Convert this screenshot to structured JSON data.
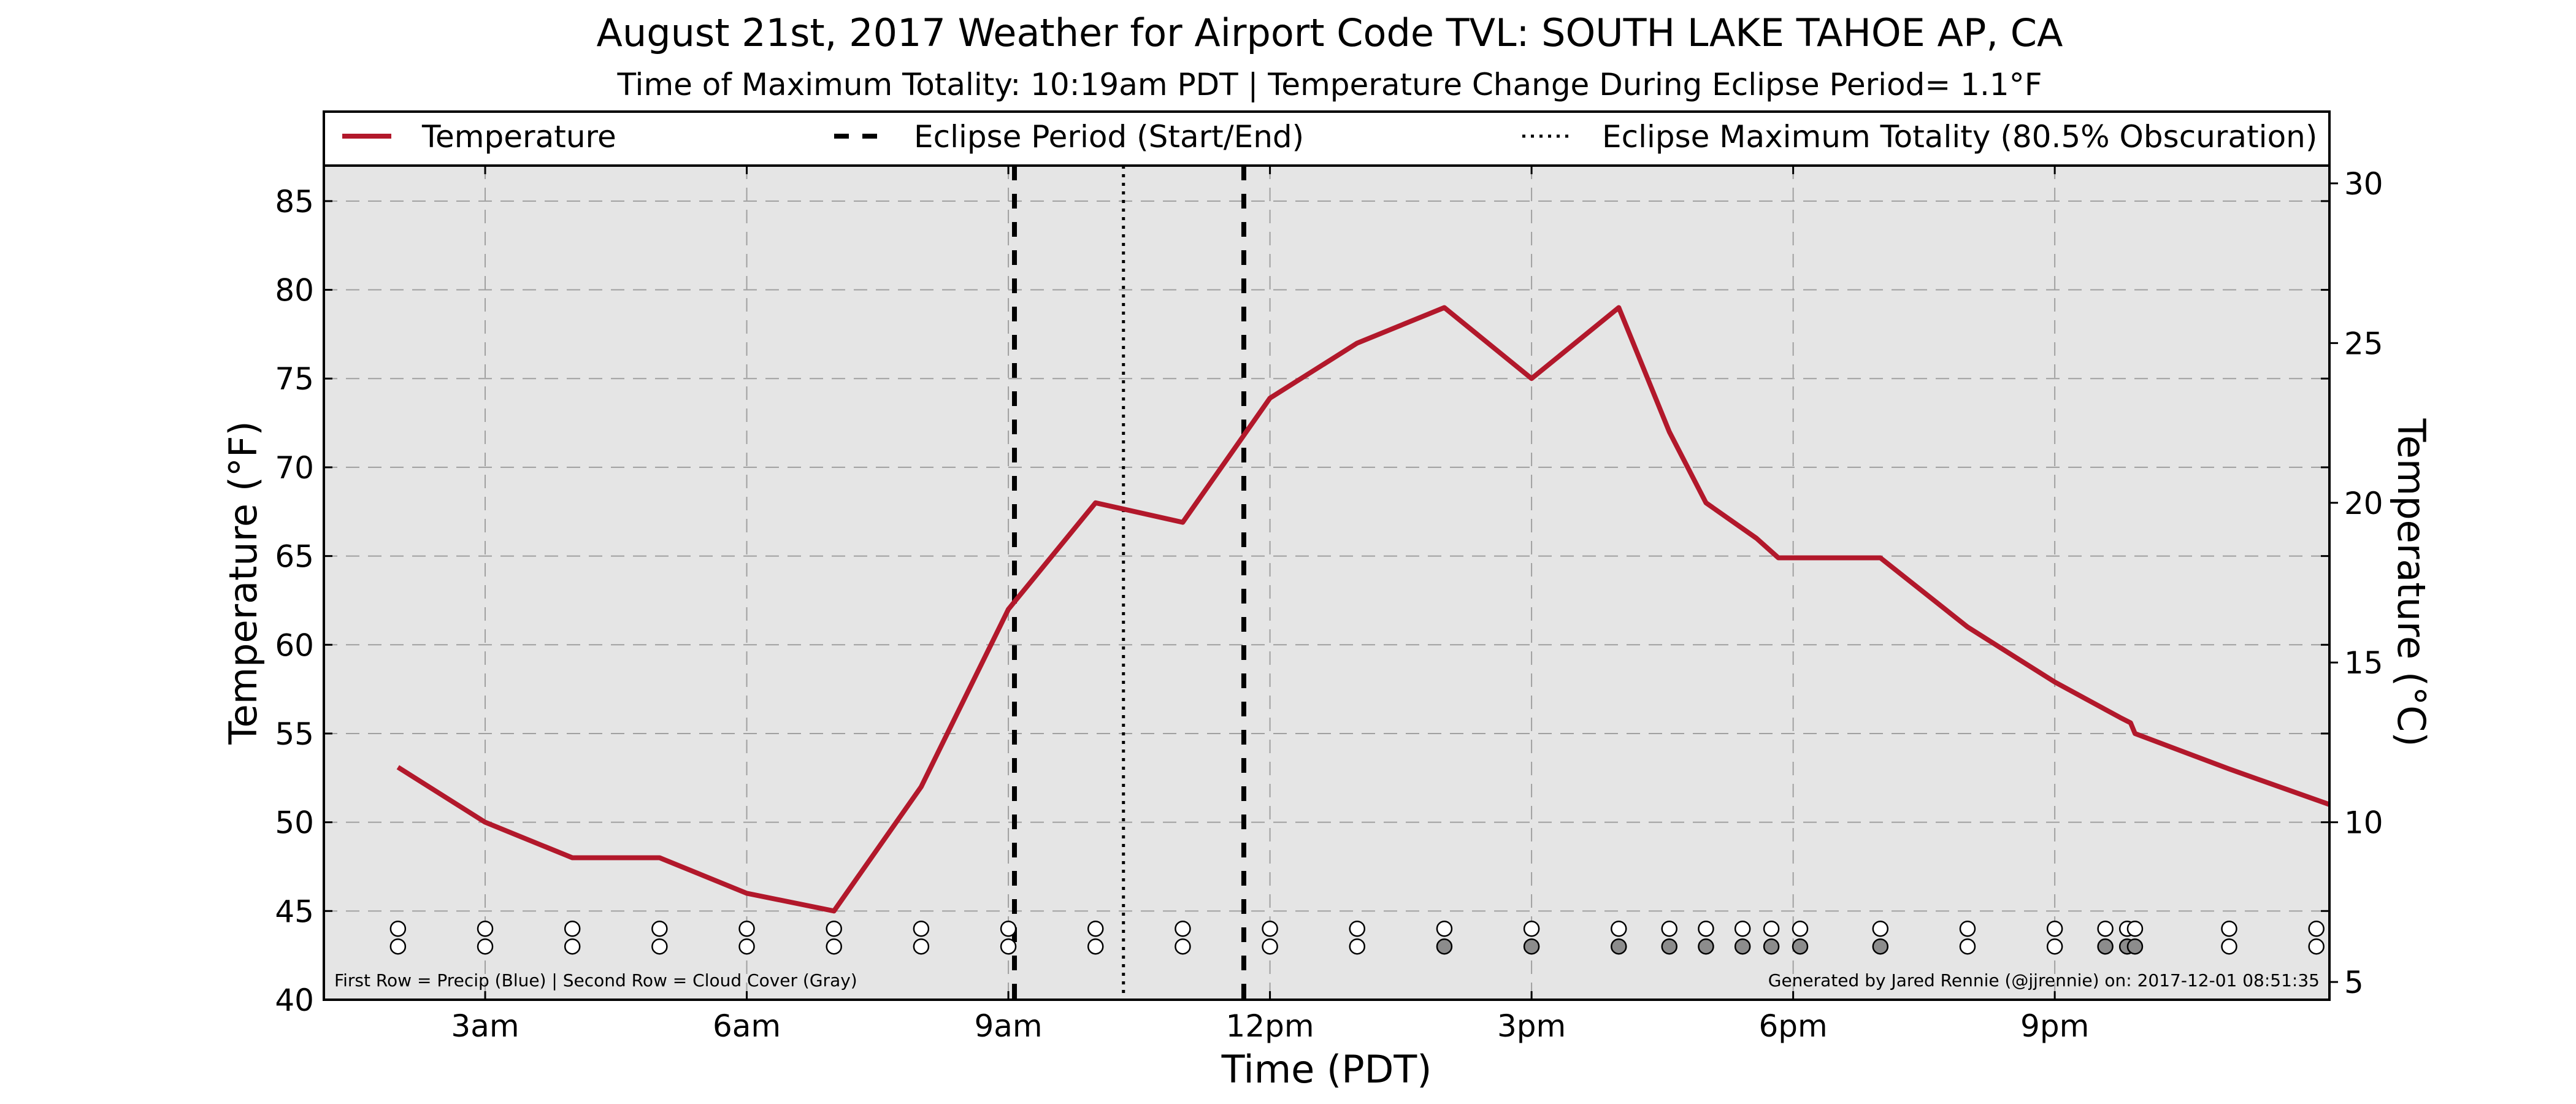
{
  "colors": {
    "temperature_line": "#b2182b",
    "plot_background": "#e5e5e5",
    "grid": "#a0a0a0",
    "cloud_filled": "#8c8c8c",
    "cloud_clear": "#ffffff"
  },
  "chart_data": {
    "type": "line",
    "title": "August 21st, 2017 Weather for Airport Code TVL: SOUTH LAKE TAHOE AP, CA",
    "subtitle": "Time of Maximum Totality: 10:19am PDT | Temperature Change During Eclipse Period= 1.1°F",
    "xlabel": "Time (PDT)",
    "ylabel_left": "Temperature (°F)",
    "ylabel_right": "Temperature (°C)",
    "xlim_hours": [
      1.15,
      24.15
    ],
    "ylim_f": [
      40,
      87
    ],
    "x_ticks": [
      {
        "hour": 3,
        "label": "3am"
      },
      {
        "hour": 6,
        "label": "6am"
      },
      {
        "hour": 9,
        "label": "9am"
      },
      {
        "hour": 12,
        "label": "12pm"
      },
      {
        "hour": 15,
        "label": "3pm"
      },
      {
        "hour": 18,
        "label": "6pm"
      },
      {
        "hour": 21,
        "label": "9pm"
      }
    ],
    "y_ticks_f": [
      40,
      45,
      50,
      55,
      60,
      65,
      70,
      75,
      80,
      85
    ],
    "y_ticks_c": [
      5,
      10,
      15,
      20,
      25,
      30
    ],
    "grid": true,
    "legend": {
      "placement": "top",
      "entries": [
        {
          "label": "Temperature",
          "style": "solid"
        },
        {
          "label": "Eclipse Period (Start/End)",
          "style": "dashed"
        },
        {
          "label": "Eclipse Maximum Totality (80.5% Obscuration)",
          "style": "dotted"
        }
      ]
    },
    "series": [
      {
        "name": "Temperature",
        "x_hours": [
          2,
          3,
          4,
          5,
          6,
          7,
          8,
          9,
          10,
          11,
          12,
          13,
          14,
          15,
          16,
          16.58,
          17,
          17.58,
          17.83,
          19,
          20,
          21,
          21.75,
          21.87,
          21.92,
          23,
          24.15
        ],
        "y_f": [
          53.1,
          50,
          48,
          48,
          46,
          45,
          52,
          62,
          68,
          66.9,
          73.9,
          77,
          79,
          75,
          79,
          72,
          68,
          66,
          64.9,
          64.9,
          61,
          57.9,
          55.9,
          55.6,
          55,
          53,
          51
        ]
      }
    ],
    "eclipse_start_hour": 9.07,
    "eclipse_end_hour": 11.7,
    "eclipse_max_hour": 10.32,
    "observation_markers": {
      "precip_row_f": 44,
      "cloud_row_f": 43,
      "x_hours": [
        2,
        3,
        4,
        5,
        6,
        7,
        8,
        9,
        10,
        11,
        12,
        13,
        14,
        15,
        16,
        16.58,
        17,
        17.42,
        17.75,
        18.08,
        19,
        20,
        21,
        21.58,
        21.83,
        21.92,
        23,
        24
      ],
      "cloud_filled": [
        false,
        false,
        false,
        false,
        false,
        false,
        false,
        false,
        false,
        false,
        false,
        false,
        true,
        true,
        true,
        true,
        true,
        true,
        true,
        true,
        true,
        false,
        false,
        true,
        true,
        true,
        false,
        false
      ]
    },
    "footer_left": "First Row = Precip (Blue) | Second Row = Cloud Cover (Gray)",
    "footer_right": "Generated by Jared Rennie (@jjrennie) on: 2017-12-01 08:51:35"
  }
}
